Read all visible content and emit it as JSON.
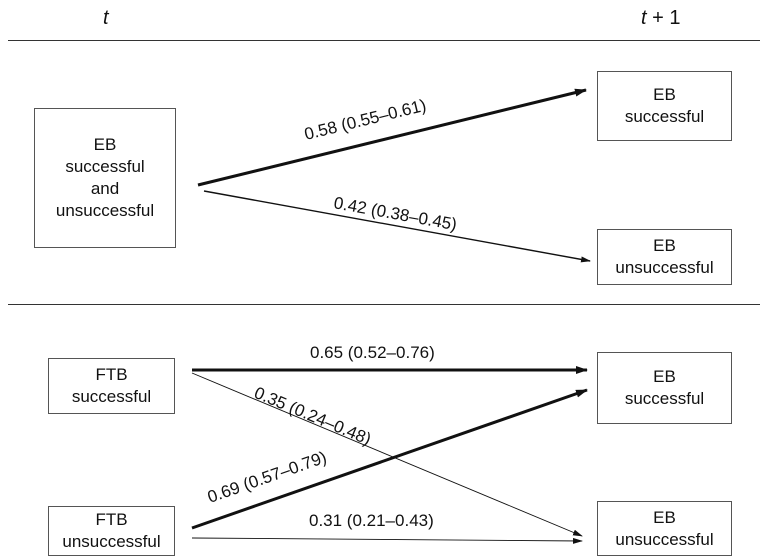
{
  "header": {
    "left": "t",
    "right_var": "t",
    "right_rest": " + 1"
  },
  "panel_top": {
    "source": [
      "EB",
      "successful",
      "and",
      "unsuccessful"
    ],
    "target_success": [
      "EB",
      "successful"
    ],
    "target_unsuccess": [
      "EB",
      "unsuccessful"
    ],
    "arrow_success_label": "0.58 (0.55–0.61)",
    "arrow_unsuccess_label": "0.42 (0.38–0.45)"
  },
  "panel_bottom": {
    "source_success": [
      "FTB",
      "successful"
    ],
    "source_unsuccess": [
      "FTB",
      "unsuccessful"
    ],
    "target_success": [
      "EB",
      "successful"
    ],
    "target_unsuccess": [
      "EB",
      "unsuccessful"
    ],
    "arrow_ss_label": "0.65 (0.52–0.76)",
    "arrow_su_label": "0.35 (0.24–0.48)",
    "arrow_us_label": "0.69 (0.57–0.79)",
    "arrow_uu_label": "0.31 (0.21–0.43)"
  }
}
